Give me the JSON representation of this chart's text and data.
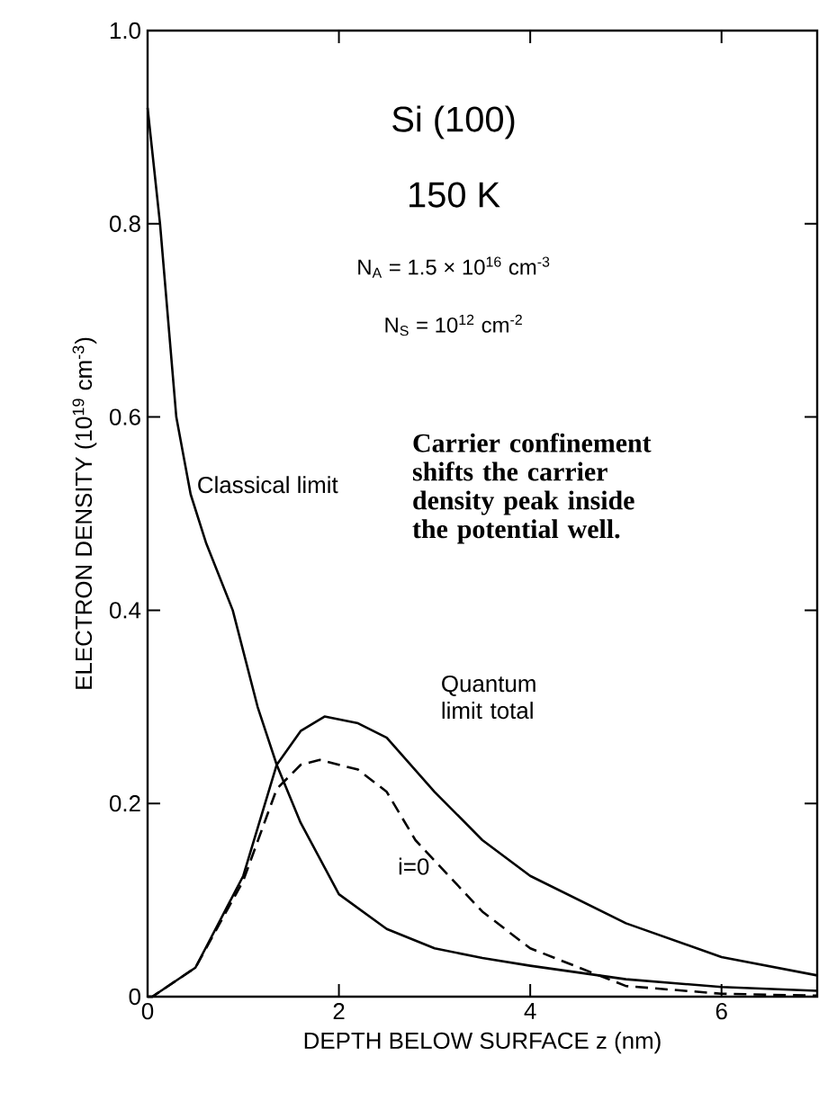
{
  "chart_data": {
    "type": "line",
    "xlabel": "DEPTH BELOW SURFACE z (nm)",
    "ylabel": "ELECTRON DENSITY (10$^{19}$ cm$^{-3}$)",
    "xlim": [
      0,
      7
    ],
    "ylim": [
      0,
      1.0
    ],
    "xticks": [
      0,
      2,
      4,
      6
    ],
    "yticks": [
      0,
      0.2,
      0.4,
      0.6,
      0.8,
      {
        "value": 1.0,
        "label": "1.0"
      }
    ],
    "grid": false,
    "series": [
      {
        "name": "Classical limit",
        "color": "#000000",
        "line_style": "solid",
        "x": [
          0,
          0.13,
          0.3,
          0.45,
          0.61,
          0.89,
          1.15,
          1.35,
          1.6,
          2,
          2.5,
          3,
          3.5,
          4,
          5,
          6,
          7
        ],
        "values": [
          0.92,
          0.8,
          0.6,
          0.52,
          0.47,
          0.4,
          0.3,
          0.24,
          0.18,
          0.106,
          0.07,
          0.05,
          0.04,
          0.032,
          0.018,
          0.01,
          0.006
        ]
      },
      {
        "name": "Quantum limit total",
        "color": "#000000",
        "line_style": "solid",
        "x": [
          0,
          0.05,
          0.5,
          1,
          1.35,
          1.6,
          1.85,
          2.2,
          2.5,
          3,
          3.5,
          4,
          5,
          6,
          7
        ],
        "values": [
          0,
          0,
          0.03,
          0.125,
          0.24,
          0.275,
          0.29,
          0.283,
          0.268,
          0.212,
          0.162,
          0.125,
          0.076,
          0.041,
          0.022
        ]
      },
      {
        "name": "i=0",
        "color": "#000000",
        "line_style": "dashed",
        "x": [
          0,
          0.05,
          0.5,
          1,
          1.35,
          1.6,
          1.8,
          2.2,
          2.5,
          2.8,
          3.5,
          4,
          5,
          6,
          7
        ],
        "values": [
          0,
          0,
          0.03,
          0.12,
          0.215,
          0.24,
          0.245,
          0.235,
          0.212,
          0.162,
          0.088,
          0.05,
          0.011,
          0.003,
          0.001
        ]
      }
    ],
    "annotations": [
      "Si (100)",
      "150 K",
      "N$_{A}$ = 1.5 × 10$^{16}$ cm$^{-3}$",
      "N$_{S}$ = 10$^{12}$ cm$^{-2}$",
      "**Carrier confinement shifts the carrier density peak inside the potential well.**"
    ]
  }
}
